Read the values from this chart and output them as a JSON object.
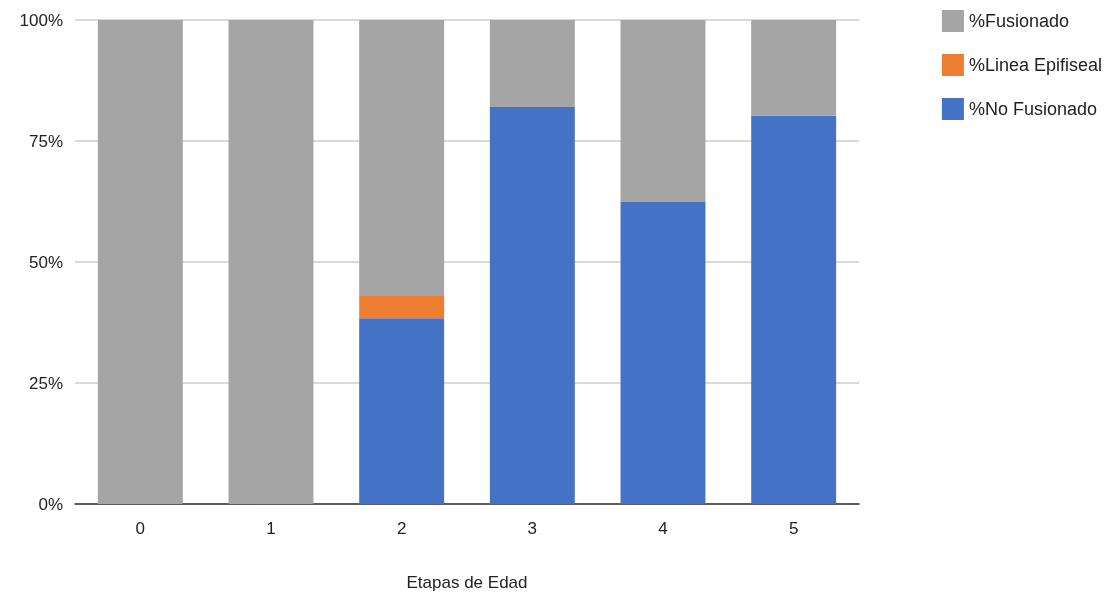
{
  "chart_data": {
    "type": "bar",
    "stacked": true,
    "xlabel": "Etapas de Edad",
    "categories": [
      "0",
      "1",
      "2",
      "3",
      "4",
      "5"
    ],
    "series": [
      {
        "name": "%No Fusionado",
        "color": "#4472c4",
        "values": [
          0,
          0,
          38.4,
          82.0,
          62.4,
          80.2
        ]
      },
      {
        "name": "%Linea Epifiseal",
        "color": "#ed7d31",
        "values": [
          0,
          0,
          4.6,
          0,
          0,
          0
        ]
      },
      {
        "name": "%Fusionado",
        "color": "#a5a5a5",
        "values": [
          100,
          100,
          57.0,
          18.0,
          37.6,
          19.8
        ]
      }
    ],
    "ylim": [
      0,
      100
    ],
    "yticks": [
      {
        "value": 0,
        "label": "0%"
      },
      {
        "value": 25,
        "label": "25%"
      },
      {
        "value": 50,
        "label": "50%"
      },
      {
        "value": 75,
        "label": "75%"
      },
      {
        "value": 100,
        "label": "100%"
      }
    ],
    "grid": "y",
    "legend": "top right"
  }
}
